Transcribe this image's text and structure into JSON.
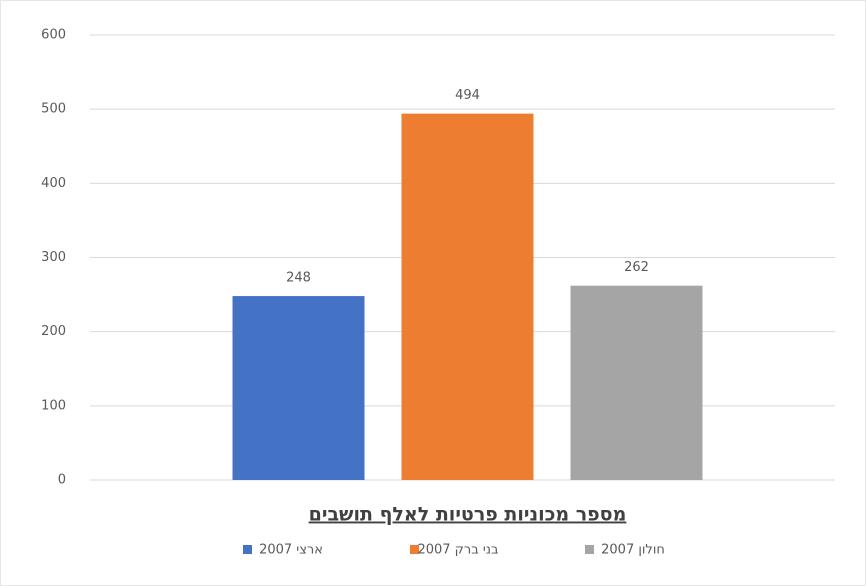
{
  "chart_data": {
    "type": "bar",
    "categories": [
      "מספר מכוניות פרטיות לאלף תושבים"
    ],
    "series": [
      {
        "name": "ארצי 2007",
        "color": "#4472c4",
        "values": [
          248
        ]
      },
      {
        "name": "בני ברק 2007",
        "color": "#ed7d31",
        "values": [
          494
        ]
      },
      {
        "name": "חולון 2007",
        "color": "#a5a5a5",
        "values": [
          262
        ]
      }
    ],
    "ylim": [
      0,
      600
    ],
    "yticks": [
      0,
      100,
      200,
      300,
      400,
      500,
      600
    ],
    "grid": true,
    "legend": "bottom"
  }
}
